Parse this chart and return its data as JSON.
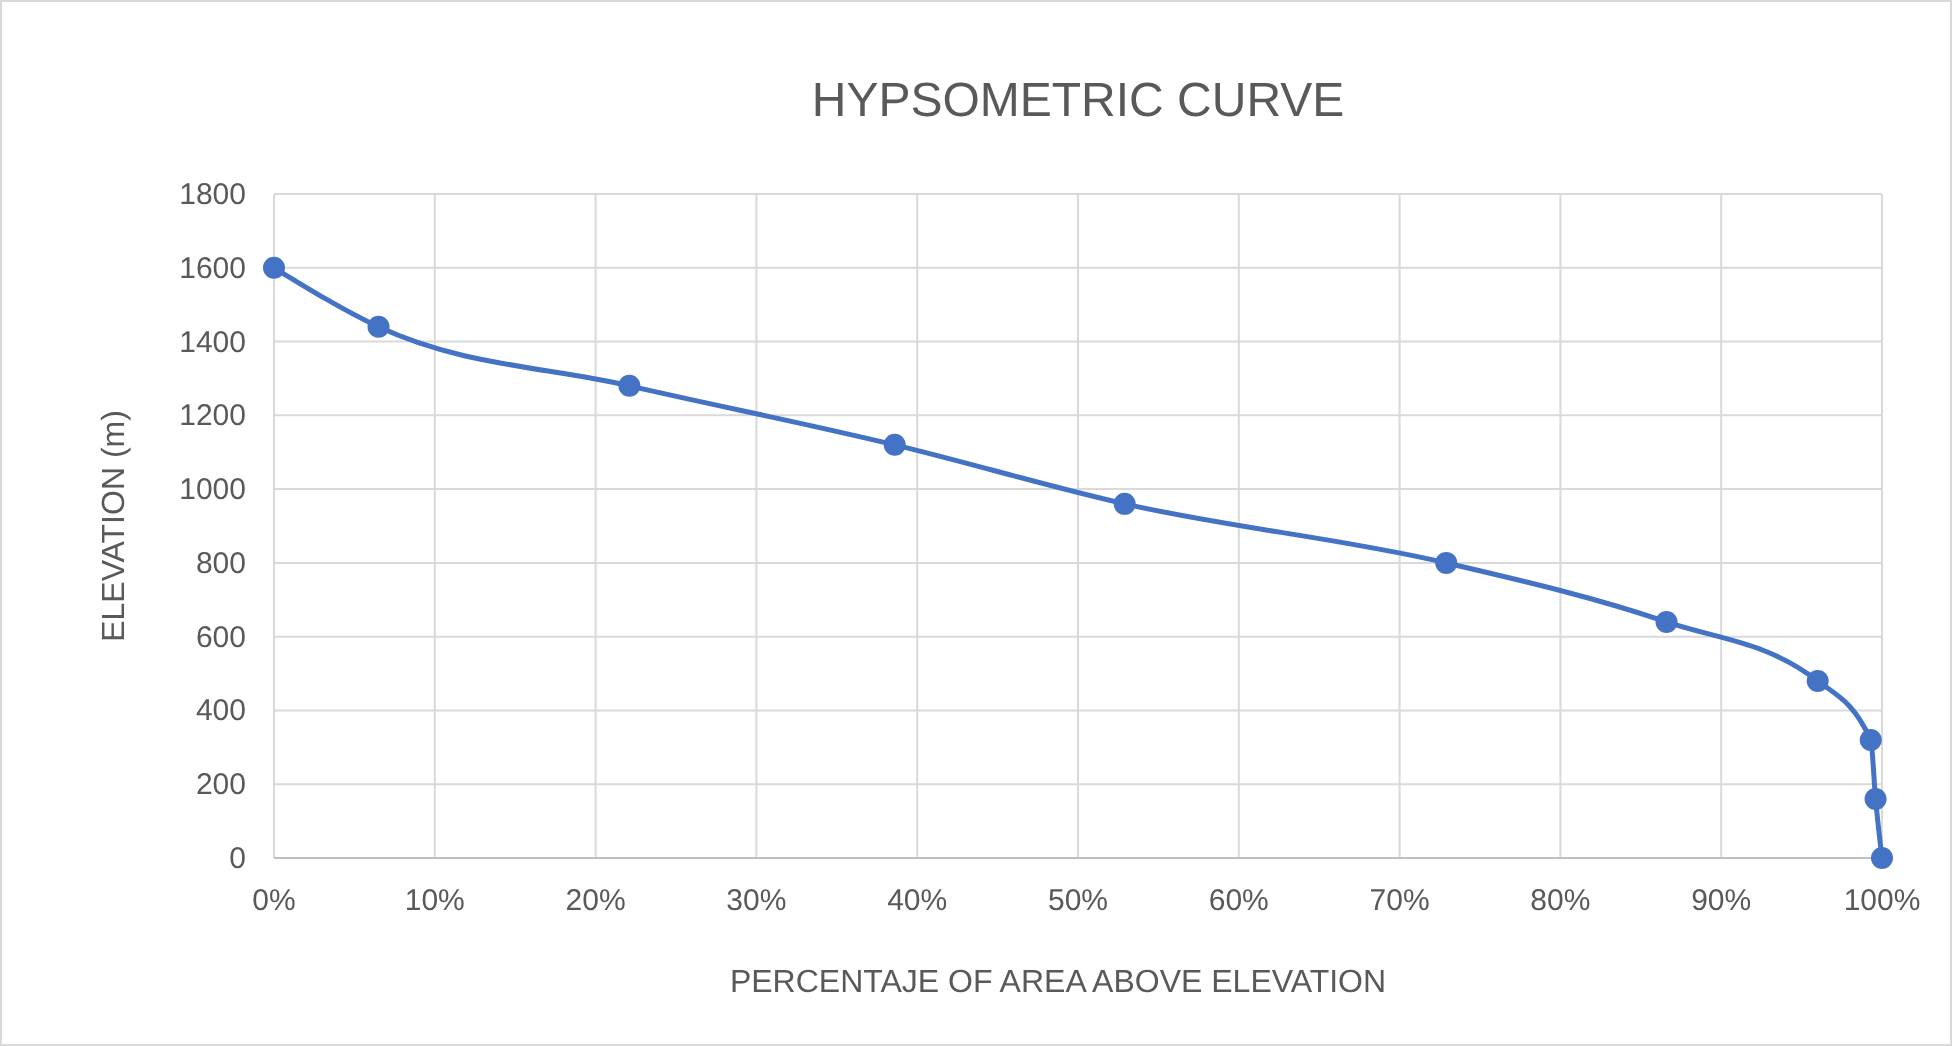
{
  "chart_data": {
    "type": "line",
    "title": "HYPSOMETRIC CURVE",
    "xlabel": "PERCENTAJE OF AREA ABOVE ELEVATION",
    "ylabel": "ELEVATION (m)",
    "x": [
      0,
      6.5,
      22.1,
      38.6,
      52.9,
      72.9,
      86.6,
      96.0,
      99.3,
      99.6,
      100
    ],
    "series": [
      {
        "color": "#4472c4",
        "values": [
          1600,
          1440,
          1280,
          1120,
          960,
          800,
          640,
          480,
          320,
          160,
          0
        ]
      }
    ],
    "xlim": [
      0,
      100
    ],
    "xticks": [
      {
        "value": 0,
        "label": "0%"
      },
      {
        "value": 10,
        "label": "10%"
      },
      {
        "value": 20,
        "label": "20%"
      },
      {
        "value": 30,
        "label": "30%"
      },
      {
        "value": 40,
        "label": "40%"
      },
      {
        "value": 50,
        "label": "50%"
      },
      {
        "value": 60,
        "label": "60%"
      },
      {
        "value": 70,
        "label": "70%"
      },
      {
        "value": 80,
        "label": "80%"
      },
      {
        "value": 90,
        "label": "90%"
      },
      {
        "value": 100,
        "label": "100%"
      }
    ],
    "ylim": [
      0,
      1800
    ],
    "yticks": [
      0,
      200,
      400,
      600,
      800,
      1000,
      1200,
      1400,
      1600,
      1800
    ],
    "grid": true,
    "marker": "circle",
    "line_style": "solid"
  }
}
